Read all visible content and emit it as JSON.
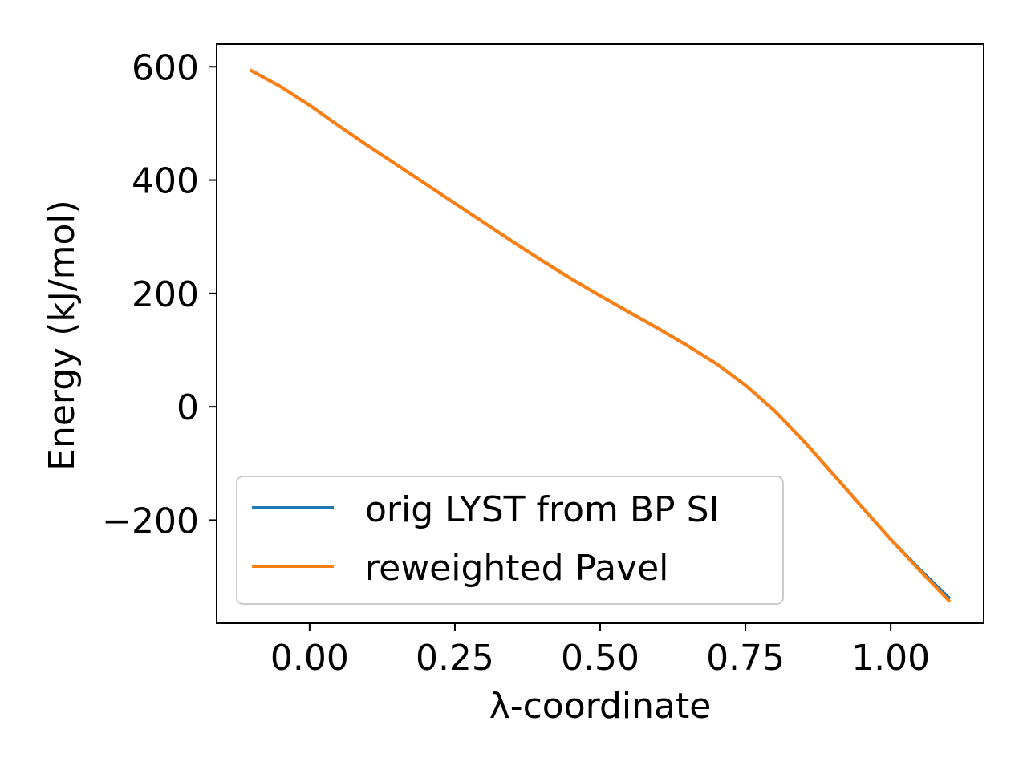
{
  "chart_data": {
    "type": "line",
    "title": "",
    "xlabel": "λ-coordinate",
    "ylabel": "Energy (kJ/mol)",
    "xlim": [
      -0.16,
      1.16
    ],
    "ylim": [
      -382,
      640
    ],
    "xticks": [
      0.0,
      0.25,
      0.5,
      0.75,
      1.0
    ],
    "xtick_labels": [
      "0.00",
      "0.25",
      "0.50",
      "0.75",
      "1.00"
    ],
    "yticks": [
      -200,
      0,
      200,
      400,
      600
    ],
    "ytick_labels": [
      "−200",
      "0",
      "200",
      "400",
      "600"
    ],
    "grid": false,
    "legend_position": "lower-left",
    "series": [
      {
        "name": "orig LYST from BP SI",
        "color": "#1f77b4",
        "x": [
          -0.1,
          -0.05,
          0.0,
          0.05,
          0.1,
          0.15,
          0.2,
          0.25,
          0.3,
          0.35,
          0.4,
          0.45,
          0.5,
          0.55,
          0.6,
          0.65,
          0.7,
          0.75,
          0.8,
          0.85,
          0.9,
          0.95,
          1.0,
          1.05,
          1.1
        ],
        "y": [
          593,
          565,
          532,
          496,
          461,
          427,
          393,
          359,
          325,
          291,
          258,
          226,
          196,
          167,
          138,
          108,
          76,
          38,
          -7,
          -60,
          -118,
          -176,
          -234,
          -287,
          -337
        ]
      },
      {
        "name": "reweighted Pavel",
        "color": "#ff7f0e",
        "x": [
          -0.1,
          -0.05,
          0.0,
          0.05,
          0.1,
          0.15,
          0.2,
          0.25,
          0.3,
          0.35,
          0.4,
          0.45,
          0.5,
          0.55,
          0.6,
          0.65,
          0.7,
          0.75,
          0.8,
          0.85,
          0.9,
          0.95,
          1.0,
          1.05,
          1.1
        ],
        "y": [
          593,
          565,
          532,
          496,
          461,
          427,
          393,
          359,
          325,
          291,
          258,
          226,
          196,
          167,
          138,
          108,
          76,
          38,
          -7,
          -60,
          -118,
          -176,
          -234,
          -289,
          -342
        ]
      }
    ]
  }
}
